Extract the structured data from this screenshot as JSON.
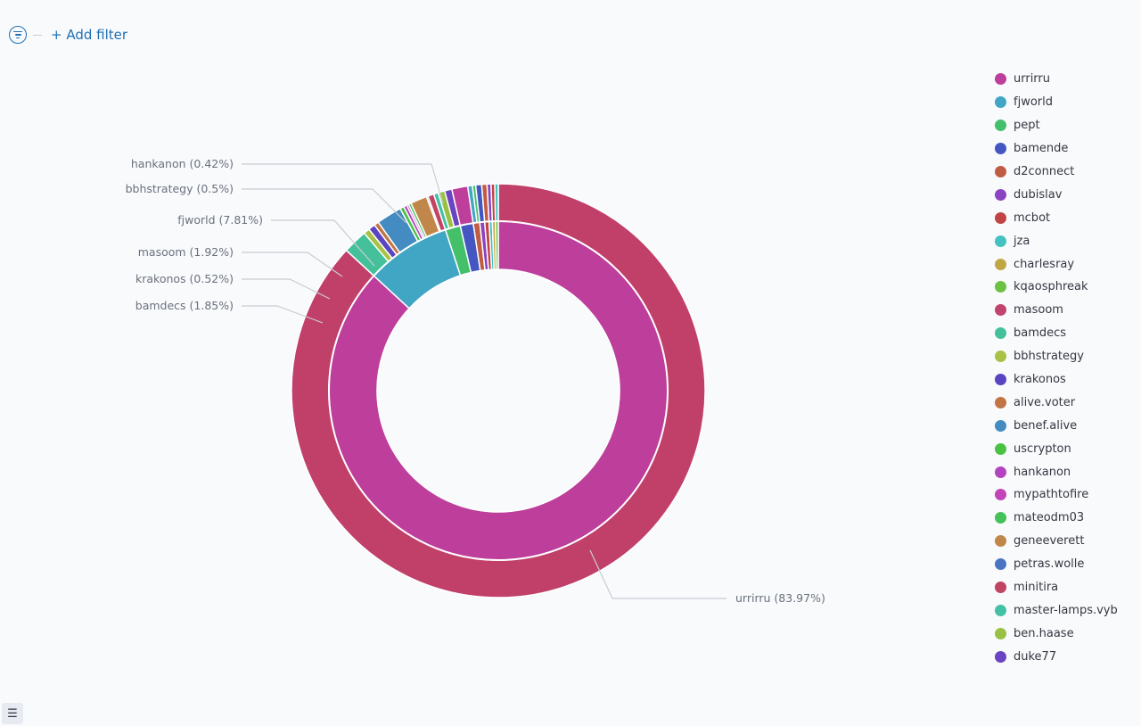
{
  "filter_bar": {
    "add_filter_label": "+ Add filter"
  },
  "icons": {
    "filter": "filter-icon",
    "list_toggle": "list-icon"
  },
  "chart_data": {
    "type": "pie",
    "variant": "nested-donut",
    "colors": {
      "urrirru": "#bd3f9b",
      "fjworld": "#41a5c4",
      "pept": "#44c06b",
      "bamende": "#4456c1",
      "d2connect": "#c15c44",
      "dubislav": "#8a44c1",
      "mcbot": "#c14444",
      "jza": "#44c1c1",
      "charlesray": "#c1a744",
      "kqaosphreak": "#6bc144",
      "masoom": "#c1446d",
      "bamdecs": "#44c19b",
      "bbhstrategy": "#a9c144",
      "krakonos": "#5b44c1",
      "alive.voter": "#c17544",
      "benef.alive": "#448bc1",
      "uscrypton": "#4bc144",
      "hankanon": "#b344c1",
      "mypathtofire": "#c144b8",
      "mateodm03": "#44c158",
      "geneeverett": "#c1874a",
      "petras.wolle": "#4a74c1",
      "minitira": "#c14462",
      "master-lamps.vyb": "#44c1a4",
      "ben.haase": "#98c144",
      "duke77": "#6a44c1",
      "outer_ring": "#c1406a"
    },
    "inner_ring": [
      {
        "label": "urrirru",
        "value": 83.97
      },
      {
        "label": "fjworld",
        "value": 7.81
      },
      {
        "label": "pept",
        "value": 1.4
      },
      {
        "label": "bamende",
        "value": 1.2
      },
      {
        "label": "d2connect",
        "value": 0.6
      },
      {
        "label": "dubislav",
        "value": 0.45
      },
      {
        "label": "mcbot",
        "value": 0.4
      },
      {
        "label": "jza",
        "value": 0.3
      },
      {
        "label": "charlesray",
        "value": 0.28
      },
      {
        "label": "kqaosphreak",
        "value": 0.26
      }
    ],
    "outer_ring": [
      {
        "parent": "urrirru",
        "value": 83.97
      },
      {
        "parent": "fjworld",
        "value": 1.85
      },
      {
        "parent": "fjworld",
        "value": 0.45
      },
      {
        "parent": "fjworld",
        "value": 0.52
      },
      {
        "parent": "fjworld",
        "value": 0.35
      },
      {
        "parent": "fjworld",
        "value": 1.92
      },
      {
        "parent": "fjworld",
        "value": 0.3
      },
      {
        "parent": "fjworld",
        "value": 0.25
      },
      {
        "parent": "fjworld",
        "value": 0.15
      },
      {
        "parent": "fjworld",
        "value": 0.2
      },
      {
        "parent": "fjworld",
        "value": 1.25
      },
      {
        "parent": "fjworld",
        "value": 0.12
      },
      {
        "parent": "fjworld",
        "value": 0.45
      },
      {
        "parent": "pept",
        "value": 0.35
      },
      {
        "parent": "pept",
        "value": 0.5
      },
      {
        "parent": "pept",
        "value": 0.55
      },
      {
        "parent": "bamende",
        "value": 1.2
      },
      {
        "parent": "d2connect",
        "value": 0.35
      },
      {
        "parent": "d2connect",
        "value": 0.25
      },
      {
        "parent": "dubislav",
        "value": 0.45
      },
      {
        "parent": "mcbot",
        "value": 0.4
      },
      {
        "parent": "jza",
        "value": 0.3
      },
      {
        "parent": "charlesray",
        "value": 0.28
      },
      {
        "parent": "kqaosphreak",
        "value": 0.26
      }
    ],
    "callouts": [
      {
        "text": "hankanon (0.42%)",
        "pct": 0.42,
        "ring": "outer"
      },
      {
        "text": "bbhstrategy (0.5%)",
        "pct": 0.5,
        "ring": "outer"
      },
      {
        "text": "fjworld (7.81%)",
        "pct": 7.81,
        "ring": "inner"
      },
      {
        "text": "masoom (1.92%)",
        "pct": 1.92,
        "ring": "outer"
      },
      {
        "text": "krakonos (0.52%)",
        "pct": 0.52,
        "ring": "outer"
      },
      {
        "text": "bamdecs (1.85%)",
        "pct": 1.85,
        "ring": "outer"
      },
      {
        "text": "urrirru (83.97%)",
        "pct": 83.97,
        "ring": "outer"
      }
    ],
    "legend_position": "right",
    "legend": [
      "urrirru",
      "fjworld",
      "pept",
      "bamende",
      "d2connect",
      "dubislav",
      "mcbot",
      "jza",
      "charlesray",
      "kqaosphreak",
      "masoom",
      "bamdecs",
      "bbhstrategy",
      "krakonos",
      "alive.voter",
      "benef.alive",
      "uscrypton",
      "hankanon",
      "mypathtofire",
      "mateodm03",
      "geneeverett",
      "petras.wolle",
      "minitira",
      "master-lamps.vyb",
      "ben.haase",
      "duke77"
    ]
  }
}
